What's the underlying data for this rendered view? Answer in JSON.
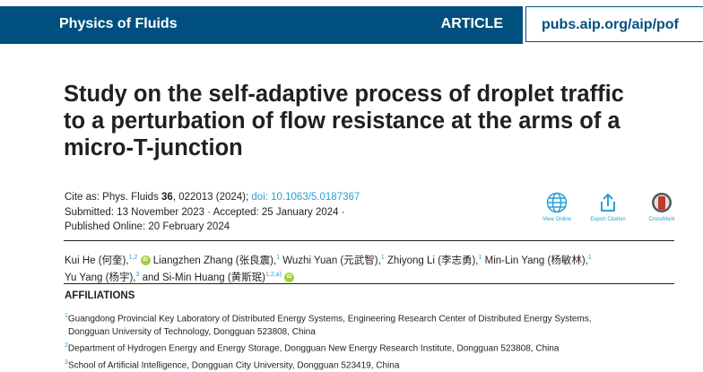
{
  "header": {
    "journal": "Physics of Fluids",
    "type": "ARTICLE",
    "url": "pubs.aip.org/aip/pof",
    "color": "#00507f"
  },
  "title": "Study on the self-adaptive process of droplet traffic to a perturbation of flow resistance at the arms of a micro-T-junction",
  "citation": {
    "prefix": "Cite as: Phys. Fluids ",
    "volume": "36",
    "rest": ", 022013 (2024); ",
    "doi": "doi: 10.1063/5.0187367",
    "submitted": "Submitted: 13 November 2023 · Accepted: 25 January 2024 ·",
    "published": "Published Online: 20 February 2024"
  },
  "tools": [
    {
      "label": "View Online",
      "icon": "globe-icon"
    },
    {
      "label": "Export Citation",
      "icon": "export-icon"
    },
    {
      "label": "CrossMark",
      "icon": "crossmark-icon"
    }
  ],
  "authors": [
    {
      "name": "Kui He (何奎),",
      "sup": "1,2",
      "orcid": true
    },
    {
      "name": "Liangzhen Zhang (张良震),",
      "sup": "1"
    },
    {
      "name": "Wuzhi Yuan (元武智),",
      "sup": "1"
    },
    {
      "name": "Zhiyong Li (李志勇),",
      "sup": "1"
    },
    {
      "name": "Min-Lin Yang (杨敏林),",
      "sup": "1"
    },
    {
      "name": "Yu Yang (杨宇),",
      "sup": "3"
    },
    {
      "name": "and Si-Min Huang (黄斯珉)",
      "sup": "1,2,a)",
      "orcid": true
    }
  ],
  "orcid_label": "iD",
  "affiliations": {
    "heading": "AFFILIATIONS",
    "items": [
      {
        "num": "1",
        "line1": "Guangdong Provincial Key Laboratory of Distributed Energy Systems, Engineering Research Center of Distributed Energy Systems,",
        "line2": "Dongguan University of Technology, Dongguan 523808, China"
      },
      {
        "num": "2",
        "line1": "Department of Hydrogen Energy and Energy Storage, Dongguan New Energy Research Institute, Dongguan 523808, China"
      },
      {
        "num": "3",
        "line1": "School of Artificial Intelligence, Dongguan City University, Dongguan 523419, China"
      }
    ]
  }
}
